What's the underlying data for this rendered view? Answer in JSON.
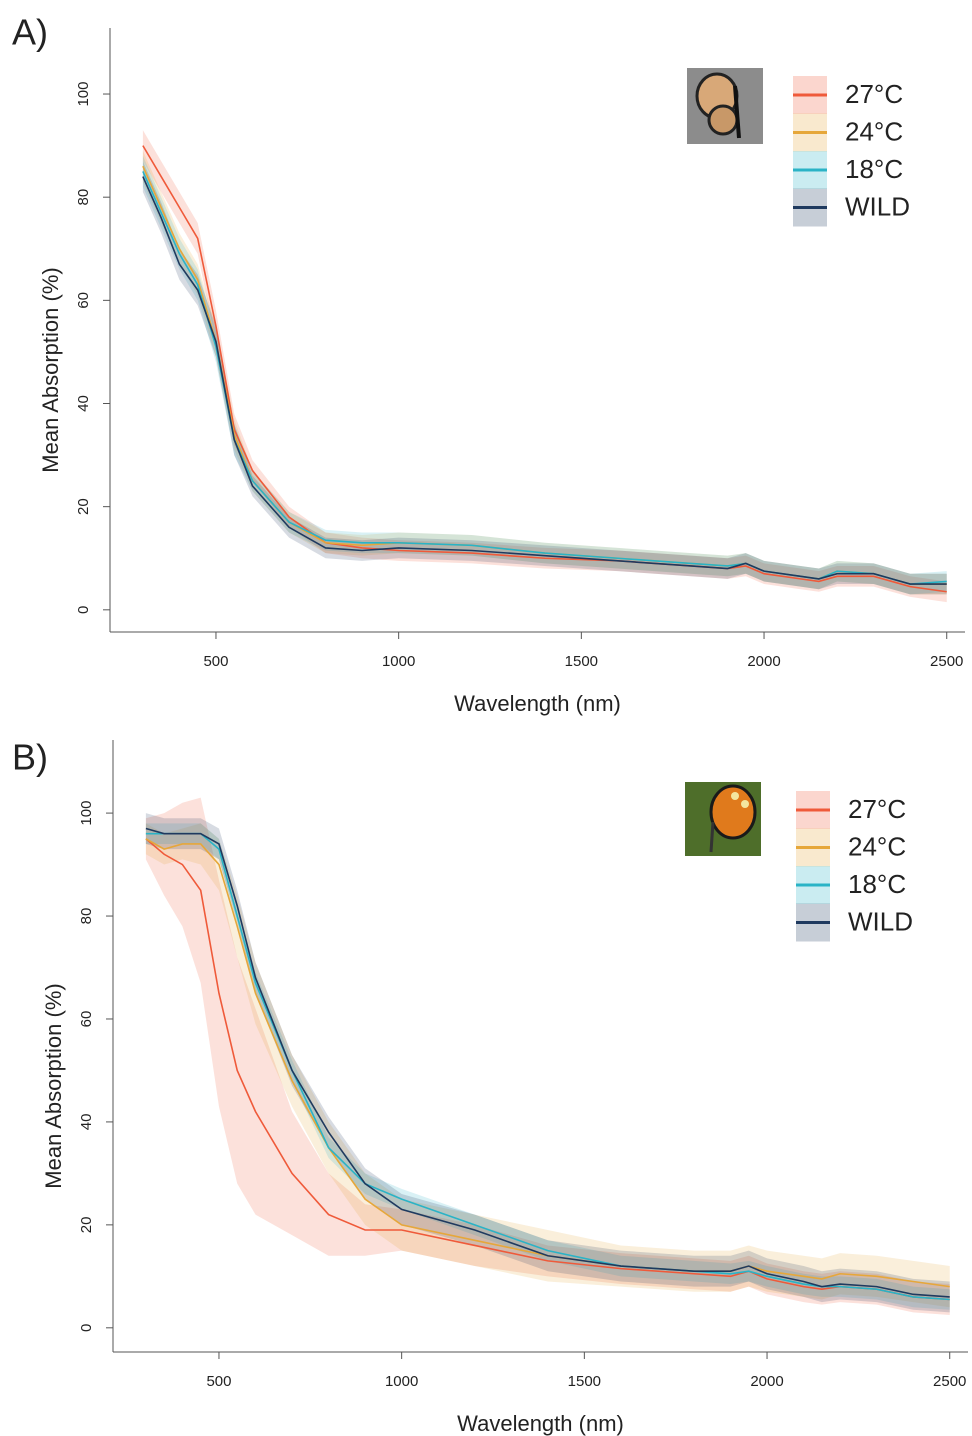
{
  "chart_data": [
    {
      "type": "line",
      "panel_label": "A)",
      "x_label": "Wavelength (nm)",
      "y_label": "Mean Absorption (%)",
      "xlim": [
        210,
        2550
      ],
      "ylim": [
        -4.3,
        112.8
      ],
      "xticks": [
        500,
        1000,
        1500,
        2000,
        2500
      ],
      "yticks": [
        0,
        20,
        40,
        60,
        80,
        100
      ],
      "legend": "top-right",
      "x": [
        300,
        350,
        400,
        450,
        500,
        550,
        600,
        700,
        800,
        900,
        1000,
        1200,
        1400,
        1600,
        1800,
        1900,
        1950,
        2000,
        2100,
        2150,
        2200,
        2300,
        2400,
        2500
      ],
      "series": [
        {
          "name": "27°C",
          "color": "#ef5a3a",
          "values": [
            90,
            84,
            78,
            72,
            55,
            35,
            27,
            18,
            13,
            12,
            11.5,
            11,
            10,
            9.5,
            8.5,
            8,
            8.5,
            7,
            6,
            5.5,
            6.5,
            6.5,
            4.5,
            3.5
          ],
          "error": [
            3,
            3,
            3,
            3,
            3,
            3,
            2,
            2,
            2,
            2,
            2,
            2,
            2,
            2,
            2,
            2,
            2,
            2,
            2,
            2,
            2,
            2,
            2,
            2
          ]
        },
        {
          "name": "24°C",
          "color": "#e6a73a",
          "values": [
            86,
            78,
            70,
            64,
            52,
            34,
            25,
            17,
            13,
            12.5,
            13,
            12.5,
            11,
            10,
            9,
            8.5,
            9,
            7.5,
            6.5,
            6,
            7.5,
            7,
            5,
            5
          ],
          "error": [
            3,
            3,
            3,
            3,
            3,
            3,
            2,
            2,
            2,
            2,
            2,
            2,
            2,
            2,
            2,
            2,
            2,
            2,
            2,
            2,
            2,
            2,
            2,
            2
          ]
        },
        {
          "name": "18°C",
          "color": "#2ab3c6",
          "values": [
            85,
            77,
            69,
            63,
            51,
            33,
            25,
            17,
            13.5,
            13,
            13,
            12.5,
            11,
            10,
            9,
            8.5,
            9,
            7.5,
            6.5,
            6,
            7.5,
            7,
            5,
            5.5
          ],
          "error": [
            3,
            3,
            3,
            3,
            3,
            3,
            2,
            2,
            2,
            2,
            2,
            2,
            2,
            2,
            2,
            2,
            2,
            2,
            2,
            2,
            2,
            2,
            2,
            2
          ]
        },
        {
          "name": "WILD",
          "color": "#1f3a5f",
          "values": [
            84,
            76,
            67,
            62,
            52,
            33,
            24,
            16,
            12,
            11.5,
            12,
            11.5,
            10.5,
            9.5,
            8.5,
            8,
            9,
            7.5,
            6.5,
            6,
            7,
            7,
            5,
            5
          ],
          "error": [
            3,
            3,
            3,
            3,
            3,
            3,
            2,
            2,
            2,
            2,
            2,
            2,
            2,
            2,
            2,
            2,
            2,
            2,
            2,
            2,
            2,
            2,
            2,
            2
          ]
        }
      ]
    },
    {
      "type": "line",
      "panel_label": "B)",
      "x_label": "Wavelength (nm)",
      "y_label": "Mean Absorption (%)",
      "xlim": [
        210,
        2550
      ],
      "ylim": [
        -4.7,
        114.2
      ],
      "xticks": [
        500,
        1000,
        1500,
        2000,
        2500
      ],
      "yticks": [
        0,
        20,
        40,
        60,
        80,
        100
      ],
      "legend": "top-right",
      "x": [
        300,
        350,
        400,
        450,
        500,
        550,
        600,
        700,
        800,
        900,
        1000,
        1200,
        1400,
        1600,
        1800,
        1900,
        1950,
        2000,
        2100,
        2150,
        2200,
        2300,
        2400,
        2500
      ],
      "series": [
        {
          "name": "27°C",
          "color": "#ef5a3a",
          "values": [
            95,
            92,
            90,
            85,
            65,
            50,
            42,
            30,
            22,
            19,
            19,
            16,
            13,
            11.5,
            10.5,
            10,
            11,
            9.5,
            8,
            7.5,
            8,
            7.5,
            6,
            5.5
          ],
          "error": [
            4,
            8,
            12,
            18,
            22,
            22,
            20,
            12,
            8,
            5,
            4,
            4,
            3,
            3,
            3,
            3,
            3,
            3,
            3,
            3,
            3,
            3,
            3,
            3
          ]
        },
        {
          "name": "24°C",
          "color": "#e6a73a",
          "values": [
            95,
            93,
            94,
            94,
            90,
            78,
            65,
            48,
            35,
            25,
            20,
            17,
            14,
            12,
            11,
            11,
            12,
            11,
            10,
            9.5,
            10.5,
            10,
            9,
            8
          ],
          "error": [
            3,
            3,
            3,
            4,
            5,
            6,
            6,
            5,
            5,
            5,
            5,
            5,
            5,
            4,
            4,
            4,
            4,
            4,
            4,
            4,
            4,
            4,
            4,
            4
          ]
        },
        {
          "name": "18°C",
          "color": "#2ab3c6",
          "values": [
            96,
            96,
            96,
            96,
            93,
            80,
            67,
            50,
            35,
            28,
            25,
            20,
            15,
            12,
            11,
            10.5,
            11,
            10,
            8.5,
            8,
            8,
            7.5,
            6,
            5.5
          ],
          "error": [
            2,
            2,
            2,
            2,
            2,
            2,
            2,
            2,
            2,
            2,
            2,
            2,
            2,
            2,
            2,
            2,
            2,
            2,
            2,
            2,
            2,
            2,
            2,
            2
          ]
        },
        {
          "name": "WILD",
          "color": "#1f3a5f",
          "values": [
            97,
            96,
            96,
            96,
            94,
            82,
            68,
            50,
            38,
            28,
            23,
            19,
            14,
            12,
            11,
            11,
            12,
            10.5,
            9,
            8,
            8.5,
            8,
            6.5,
            6
          ],
          "error": [
            3,
            3,
            3,
            3,
            3,
            3,
            3,
            3,
            3,
            3,
            3,
            3,
            3,
            3,
            3,
            3,
            3,
            3,
            3,
            3,
            3,
            3,
            3,
            3
          ]
        }
      ]
    }
  ]
}
